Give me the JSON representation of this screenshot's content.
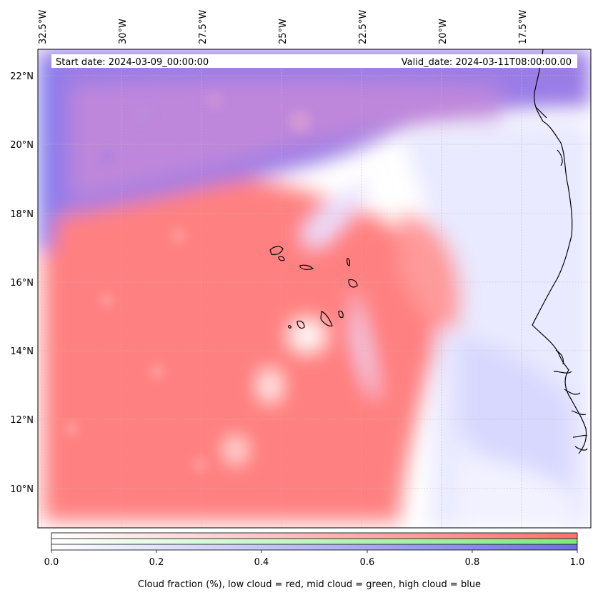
{
  "map": {
    "start_date_label": "Start date: 2024-03-09_00:00:00",
    "valid_date_label": "Valid_date: 2024-03-11T08:00:00.00",
    "longitude_labels": [
      "32.5°W",
      "30°W",
      "27.5°W",
      "25°W",
      "22.5°W",
      "20°W",
      "17.5°W"
    ],
    "latitude_labels": [
      "22°N",
      "20°N",
      "18°N",
      "16°N",
      "14°N",
      "12°N",
      "10°N"
    ],
    "colors": {
      "low_cloud": "#ff7f7f",
      "mid_cloud": "#7fff7f",
      "high_cloud": "#7f7fff",
      "coastline": "#000000"
    }
  },
  "colorbar": {
    "ticks": [
      "0.0",
      "0.2",
      "0.4",
      "0.6",
      "0.8",
      "1.0"
    ],
    "label": "Cloud fraction (%), low cloud = red, mid cloud = green, high cloud = blue",
    "range": [
      0.0,
      1.0
    ]
  }
}
